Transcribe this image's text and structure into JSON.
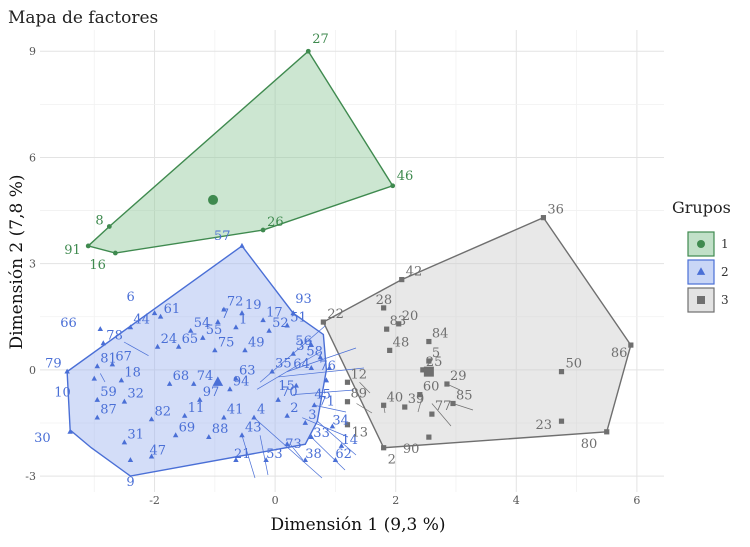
{
  "chart_data": {
    "type": "scatter",
    "title": "Mapa de factores",
    "xlabel": "Dimensión 1 (9,3 %)",
    "ylabel": "Dimensión 2 (7,8 %)",
    "xlim": [
      -3.9,
      6.45
    ],
    "ylim": [
      -3.45,
      9.6
    ],
    "xticks": [
      -2,
      0,
      2,
      4,
      6
    ],
    "yticks": [
      -3,
      0,
      3,
      6,
      9
    ],
    "grid": true,
    "legend": {
      "title": "Grupos",
      "position": "right"
    },
    "series": [
      {
        "name": "1",
        "color": "#3f8a4f",
        "fill": "#8ec79a",
        "marker": "circle",
        "centroid": [
          -1.03,
          4.8
        ],
        "hull": [
          [
            0.55,
            9.0
          ],
          [
            1.95,
            5.2
          ],
          [
            -0.2,
            3.95
          ],
          [
            -2.65,
            3.3
          ],
          [
            -3.1,
            3.5
          ],
          [
            -2.75,
            4.05
          ]
        ],
        "points": [
          {
            "label": "27",
            "x": 0.55,
            "y": 9.0
          },
          {
            "label": "46",
            "x": 1.95,
            "y": 5.2
          },
          {
            "label": "26",
            "x": -0.2,
            "y": 3.95
          },
          {
            "label": "8",
            "x": -2.75,
            "y": 4.05
          },
          {
            "label": "91",
            "x": -3.1,
            "y": 3.5
          },
          {
            "label": "16",
            "x": -2.65,
            "y": 3.3
          }
        ]
      },
      {
        "name": "2",
        "color": "#4a6fd6",
        "fill": "#9db4ef",
        "marker": "triangle",
        "centroid": [
          -0.95,
          -0.35
        ],
        "hull": [
          [
            -0.55,
            3.5
          ],
          [
            0.3,
            1.6
          ],
          [
            0.8,
            1.0
          ],
          [
            0.85,
            0.0
          ],
          [
            0.7,
            -1.45
          ],
          [
            0.5,
            -2.1
          ],
          [
            -2.4,
            -3.0
          ],
          [
            -3.05,
            -2.2
          ],
          [
            -3.4,
            -1.7
          ],
          [
            -3.45,
            -0.05
          ]
        ],
        "points": [
          {
            "label": "57",
            "x": -0.55,
            "y": 3.5
          },
          {
            "label": "93",
            "x": 0.3,
            "y": 1.6
          },
          {
            "label": "72",
            "x": -0.85,
            "y": 1.7
          },
          {
            "label": "19",
            "x": -0.55,
            "y": 1.6
          },
          {
            "label": "17",
            "x": -0.2,
            "y": 1.4
          },
          {
            "label": "6",
            "x": -2.0,
            "y": 1.6
          },
          {
            "label": "61",
            "x": -1.9,
            "y": 1.5
          },
          {
            "label": "7",
            "x": -0.95,
            "y": 1.35
          },
          {
            "label": "51",
            "x": 0.2,
            "y": 1.25
          },
          {
            "label": "66",
            "x": -2.9,
            "y": 1.15
          },
          {
            "label": "44",
            "x": -2.4,
            "y": 1.2
          },
          {
            "label": "54",
            "x": -1.4,
            "y": 1.1
          },
          {
            "label": "1",
            "x": -0.65,
            "y": 1.2
          },
          {
            "label": "52",
            "x": -0.1,
            "y": 1.1
          },
          {
            "label": "56",
            "x": 0.6,
            "y": 0.7
          },
          {
            "label": "55",
            "x": -1.2,
            "y": 0.9
          },
          {
            "label": "78",
            "x": -2.85,
            "y": 0.75
          },
          {
            "label": "24",
            "x": -1.95,
            "y": 0.65
          },
          {
            "label": "65",
            "x": -1.6,
            "y": 0.65
          },
          {
            "label": "75",
            "x": -1.0,
            "y": 0.55
          },
          {
            "label": "49",
            "x": -0.5,
            "y": 0.55
          },
          {
            "label": "37",
            "x": 0.3,
            "y": 0.45
          },
          {
            "label": "58",
            "x": 0.75,
            "y": 0.35
          },
          {
            "label": "79",
            "x": -3.45,
            "y": -0.05
          },
          {
            "label": "81",
            "x": -2.95,
            "y": 0.1
          },
          {
            "label": "67",
            "x": -2.7,
            "y": 0.15
          },
          {
            "label": "64",
            "x": 0.6,
            "y": 0.05
          },
          {
            "label": "76",
            "x": 0.9,
            "y": 0.05
          },
          {
            "label": "35",
            "x": -0.05,
            "y": -0.05
          },
          {
            "label": "63",
            "x": -0.65,
            "y": -0.25
          },
          {
            "label": "10",
            "x": -3.0,
            "y": -0.25
          },
          {
            "label": "18",
            "x": -2.55,
            "y": -0.3
          },
          {
            "label": "68",
            "x": -1.75,
            "y": -0.4
          },
          {
            "label": "74",
            "x": -1.35,
            "y": -0.4
          },
          {
            "label": "45",
            "x": 0.85,
            "y": -0.3
          },
          {
            "label": "94",
            "x": -0.75,
            "y": -0.55
          },
          {
            "label": "15",
            "x": 0.35,
            "y": -0.45
          },
          {
            "label": "59",
            "x": -2.95,
            "y": -0.85
          },
          {
            "label": "32",
            "x": -2.5,
            "y": -0.9
          },
          {
            "label": "97",
            "x": -1.25,
            "y": -0.85
          },
          {
            "label": "70",
            "x": 0.05,
            "y": -0.85
          },
          {
            "label": "71",
            "x": 0.65,
            "y": -1.0
          },
          {
            "label": "87",
            "x": -2.95,
            "y": -1.35
          },
          {
            "label": "82",
            "x": -2.05,
            "y": -1.4
          },
          {
            "label": "11",
            "x": -1.5,
            "y": -1.3
          },
          {
            "label": "41",
            "x": -0.85,
            "y": -1.35
          },
          {
            "label": "4",
            "x": -0.35,
            "y": -1.35
          },
          {
            "label": "2",
            "x": 0.2,
            "y": -1.3
          },
          {
            "label": "3",
            "x": 0.5,
            "y": -1.5
          },
          {
            "label": "34",
            "x": 0.95,
            "y": -1.6
          },
          {
            "label": "30",
            "x": -3.4,
            "y": -1.75
          },
          {
            "label": "69",
            "x": -1.65,
            "y": -1.85
          },
          {
            "label": "88",
            "x": -1.1,
            "y": -1.9
          },
          {
            "label": "43",
            "x": -0.55,
            "y": -1.85
          },
          {
            "label": "33",
            "x": 0.6,
            "y": -1.9
          },
          {
            "label": "31",
            "x": -2.5,
            "y": -2.05
          },
          {
            "label": "73",
            "x": 0.2,
            "y": -2.1
          },
          {
            "label": "14",
            "x": 1.1,
            "y": -2.15
          },
          {
            "label": "47",
            "x": -2.05,
            "y": -2.45
          },
          {
            "label": "21",
            "x": -0.65,
            "y": -2.55
          },
          {
            "label": "53",
            "x": -0.15,
            "y": -2.55
          },
          {
            "label": "38",
            "x": 0.5,
            "y": -2.55
          },
          {
            "label": "62",
            "x": 1.0,
            "y": -2.55
          },
          {
            "label": "9",
            "x": -2.4,
            "y": -2.55
          }
        ]
      },
      {
        "name": "3",
        "color": "#6f6f6f",
        "fill": "#cccccc",
        "marker": "square",
        "centroid": [
          2.55,
          -0.05
        ],
        "hull": [
          [
            4.45,
            4.3
          ],
          [
            5.9,
            0.7
          ],
          [
            5.5,
            -1.75
          ],
          [
            1.8,
            -2.2
          ],
          [
            0.8,
            1.35
          ],
          [
            2.1,
            2.55
          ]
        ],
        "points": [
          {
            "label": "36",
            "x": 4.45,
            "y": 4.3
          },
          {
            "label": "42",
            "x": 2.1,
            "y": 2.55
          },
          {
            "label": "28",
            "x": 1.8,
            "y": 1.75
          },
          {
            "label": "22",
            "x": 0.8,
            "y": 1.35
          },
          {
            "label": "20",
            "x": 2.05,
            "y": 1.3
          },
          {
            "label": "83",
            "x": 1.85,
            "y": 1.15
          },
          {
            "label": "84",
            "x": 2.55,
            "y": 0.8
          },
          {
            "label": "48",
            "x": 1.9,
            "y": 0.55
          },
          {
            "label": "86",
            "x": 5.9,
            "y": 0.7
          },
          {
            "label": "5",
            "x": 2.55,
            "y": 0.25
          },
          {
            "label": "50",
            "x": 4.75,
            "y": -0.05
          },
          {
            "label": "25",
            "x": 2.45,
            "y": 0.0
          },
          {
            "label": "29",
            "x": 2.85,
            "y": -0.4
          },
          {
            "label": "12",
            "x": 1.2,
            "y": -0.35
          },
          {
            "label": "60",
            "x": 2.4,
            "y": -0.7
          },
          {
            "label": "85",
            "x": 2.95,
            "y": -0.95
          },
          {
            "label": "89",
            "x": 1.2,
            "y": -0.9
          },
          {
            "label": "40",
            "x": 1.8,
            "y": -1.0
          },
          {
            "label": "39",
            "x": 2.15,
            "y": -1.05
          },
          {
            "label": "77",
            "x": 2.6,
            "y": -1.25
          },
          {
            "label": "13",
            "x": 1.2,
            "y": -1.55
          },
          {
            "label": "23",
            "x": 4.75,
            "y": -1.45
          },
          {
            "label": "80",
            "x": 5.5,
            "y": -1.75
          },
          {
            "label": "90",
            "x": 2.55,
            "y": -1.9
          },
          {
            "label": "2",
            "x": 1.8,
            "y": -2.2
          }
        ]
      }
    ]
  }
}
